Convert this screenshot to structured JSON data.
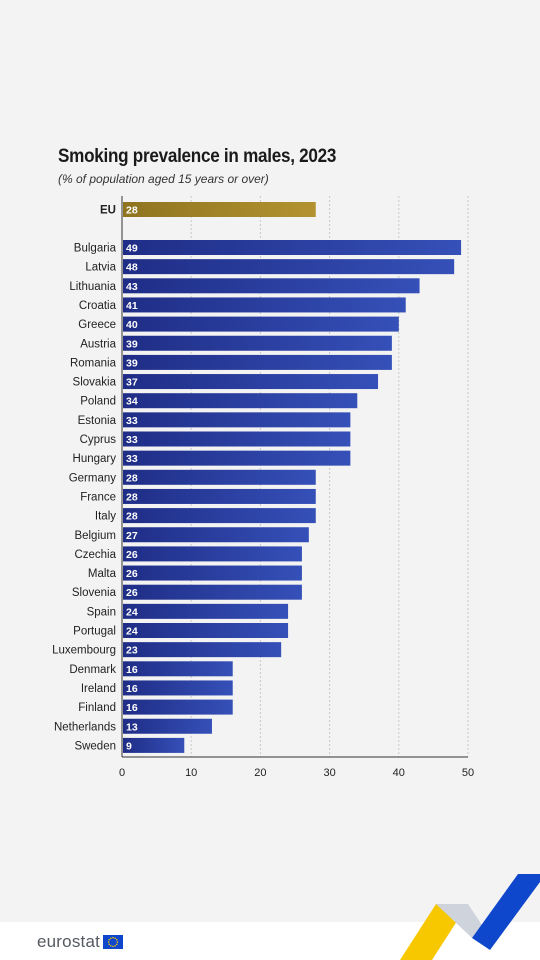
{
  "chart_data": {
    "type": "bar",
    "orientation": "horizontal",
    "title": "Smoking prevalence in males, 2023",
    "subtitle": "(% of population aged 15 years or over)",
    "xlim": [
      0,
      50
    ],
    "xticks": [
      0,
      10,
      20,
      30,
      40,
      50
    ],
    "grid": "vertical dashed",
    "highlight": {
      "category": "EU",
      "value": 28,
      "color": "#a8892a"
    },
    "categories": [
      "Bulgaria",
      "Latvia",
      "Lithuania",
      "Croatia",
      "Greece",
      "Austria",
      "Romania",
      "Slovakia",
      "Poland",
      "Estonia",
      "Cyprus",
      "Hungary",
      "Germany",
      "France",
      "Italy",
      "Belgium",
      "Czechia",
      "Malta",
      "Slovenia",
      "Spain",
      "Portugal",
      "Luxembourg",
      "Denmark",
      "Ireland",
      "Finland",
      "Netherlands",
      "Sweden"
    ],
    "values": [
      49,
      48,
      43,
      41,
      40,
      39,
      39,
      37,
      34,
      33,
      33,
      33,
      28,
      28,
      28,
      27,
      26,
      26,
      26,
      24,
      24,
      23,
      16,
      16,
      16,
      13,
      9
    ],
    "bar_color": "#26379a",
    "bar_color_light": "#3a54bf"
  },
  "branding": {
    "logo_text": "eurostat",
    "logo_icon": "eu-flag-icon",
    "flag_color": "#0e47cb",
    "star_color": "#ffcc00"
  },
  "decoration": {
    "colors": [
      "#f7c800",
      "#cfd3dc",
      "#0e47cb"
    ]
  }
}
